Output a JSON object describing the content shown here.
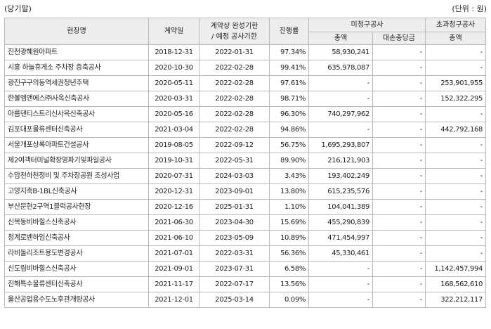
{
  "caption": {
    "period": "(당기말)",
    "unit": "(단위 : 원)"
  },
  "headers": {
    "site": "현장명",
    "contract_date": "계약일",
    "deadline_l1": "계약상 완성기한",
    "deadline_l2": "/ 예정 공사기한",
    "progress": "진행률",
    "unbilled": "미청구공사",
    "unbilled_total": "총액",
    "unbilled_allowance": "대손충당금",
    "overbilled": "초과청구공사",
    "overbilled_total": "총액"
  },
  "rows": [
    {
      "site": "진천광혜원아파트",
      "contract": "2018-12-31",
      "deadline": "2022-01-31",
      "progress": "97.34%",
      "unbilled": "58,930,241",
      "allowance": "-",
      "overbilled": "-"
    },
    {
      "site": "시흥 하늘휴게소 주차장 증축공사",
      "contract": "2020-10-30",
      "deadline": "2022-02-28",
      "progress": "99.41%",
      "unbilled": "635,978,087",
      "allowance": "-",
      "overbilled": "-"
    },
    {
      "site": "광진구구의동역세권청년주택",
      "contract": "2020-05-11",
      "deadline": "2022-02-28",
      "progress": "97.61%",
      "unbilled": "-",
      "allowance": "-",
      "overbilled": "253,901,955"
    },
    {
      "site": "한볼엠앤에스㈜사옥신축공사",
      "contract": "2020-03-31",
      "deadline": "2022-02-28",
      "progress": "98.71%",
      "unbilled": "-",
      "allowance": "-",
      "overbilled": "152,322,295"
    },
    {
      "site": "아름덴티스트리신사옥신축공사",
      "contract": "2020-05-16",
      "deadline": "2022-02-28",
      "progress": "96.30%",
      "unbilled": "740,297,962",
      "allowance": "-",
      "overbilled": "-"
    },
    {
      "site": "김포대포물류센터신축공사",
      "contract": "2021-03-04",
      "deadline": "2022-02-28",
      "progress": "94.86%",
      "unbilled": "-",
      "allowance": "-",
      "overbilled": "442,792,168"
    },
    {
      "site": "서울개포상록아파트건설공사",
      "contract": "2019-08-05",
      "deadline": "2022-09-12",
      "progress": "56.75%",
      "unbilled": "1,695,293,807",
      "allowance": "-",
      "overbilled": "-"
    },
    {
      "site": "제2여객터미널확장영파기및파일공사",
      "contract": "2019-10-31",
      "deadline": "2022-05-31",
      "progress": "89.90%",
      "unbilled": "216,121,903",
      "allowance": "-",
      "overbilled": "-"
    },
    {
      "site": "수암천하천정비 및 주차장공원 조성사업",
      "contract": "2020-07-31",
      "deadline": "2024-03-03",
      "progress": "3.43%",
      "unbilled": "193,402,249",
      "allowance": "-",
      "overbilled": "-"
    },
    {
      "site": "고양지축B-1BL신축공사",
      "contract": "2020-12-31",
      "deadline": "2023-09-01",
      "progress": "13.80%",
      "unbilled": "615,235,576",
      "allowance": "-",
      "overbilled": "-"
    },
    {
      "site": "부산문현2구역1블럭공사현장",
      "contract": "2020-12-16",
      "deadline": "2025-01-31",
      "progress": "1.10%",
      "unbilled": "104,041,389",
      "allowance": "-",
      "overbilled": "-"
    },
    {
      "site": "신목동비바힐스신축공사",
      "contract": "2021-06-30",
      "deadline": "2023-04-30",
      "progress": "15.69%",
      "unbilled": "455,290,839",
      "allowance": "-",
      "overbilled": "-"
    },
    {
      "site": "청계로벤하임신축공사",
      "contract": "2021-06-10",
      "deadline": "2023-05-09",
      "progress": "10.89%",
      "unbilled": "471,454,997",
      "allowance": "-",
      "overbilled": "-"
    },
    {
      "site": "라비돌리조트용도변경공사",
      "contract": "2021-07-01",
      "deadline": "2022-03-31",
      "progress": "56.36%",
      "unbilled": "45,330,461",
      "allowance": "-",
      "overbilled": "-"
    },
    {
      "site": "신도림비바힐스신축공사",
      "contract": "2021-09-01",
      "deadline": "2023-07-31",
      "progress": "6.58%",
      "unbilled": "-",
      "allowance": "-",
      "overbilled": "1,142,457,994"
    },
    {
      "site": "진해특수물류센터신축공사",
      "contract": "2021-11-17",
      "deadline": "2022-07-17",
      "progress": "13.56%",
      "unbilled": "-",
      "allowance": "-",
      "overbilled": "168,562,610"
    },
    {
      "site": "울산공업용수도노후관개량공사",
      "contract": "2021-12-01",
      "deadline": "2025-03-14",
      "progress": "0.09%",
      "unbilled": "-",
      "allowance": "-",
      "overbilled": "322,212,117"
    }
  ]
}
